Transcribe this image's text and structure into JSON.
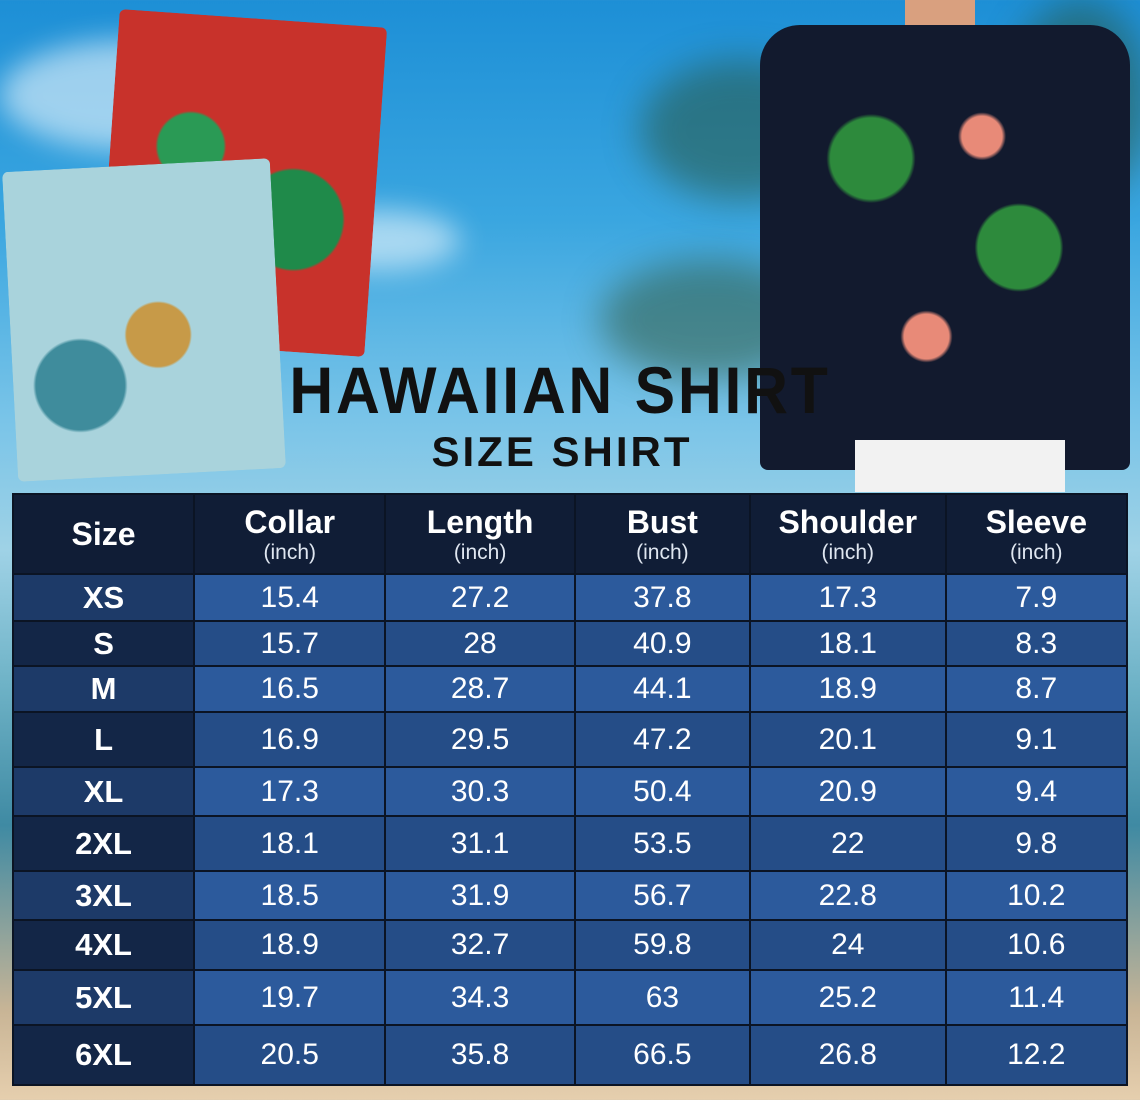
{
  "title": "HAWAIIAN SHIRT",
  "subtitle": "SIZE SHIRT",
  "table": {
    "headers": [
      {
        "label": "Size",
        "unit": ""
      },
      {
        "label": "Collar",
        "unit": "(inch)"
      },
      {
        "label": "Length",
        "unit": "(inch)"
      },
      {
        "label": "Bust",
        "unit": "(inch)"
      },
      {
        "label": "Shoulder",
        "unit": "(inch)"
      },
      {
        "label": "Sleeve",
        "unit": "(inch)"
      }
    ],
    "rows": [
      [
        "XS",
        "15.4",
        "27.2",
        "37.8",
        "17.3",
        "7.9"
      ],
      [
        "S",
        "15.7",
        "28",
        "40.9",
        "18.1",
        "8.3"
      ],
      [
        "M",
        "16.5",
        "28.7",
        "44.1",
        "18.9",
        "8.7"
      ],
      [
        "L",
        "16.9",
        "29.5",
        "47.2",
        "20.1",
        "9.1"
      ],
      [
        "XL",
        "17.3",
        "30.3",
        "50.4",
        "20.9",
        "9.4"
      ],
      [
        "2XL",
        "18.1",
        "31.1",
        "53.5",
        "22",
        "9.8"
      ],
      [
        "3XL",
        "18.5",
        "31.9",
        "56.7",
        "22.8",
        "10.2"
      ],
      [
        "4XL",
        "18.9",
        "32.7",
        "59.8",
        "24",
        "10.6"
      ],
      [
        "5XL",
        "19.7",
        "34.3",
        "63",
        "25.2",
        "11.4"
      ],
      [
        "6XL",
        "20.5",
        "35.8",
        "66.5",
        "26.8",
        "12.2"
      ]
    ]
  },
  "colors": {
    "header": "#101d36",
    "row_light": "#2c5a9c",
    "row_dark": "#254d87",
    "title": "#111111"
  }
}
